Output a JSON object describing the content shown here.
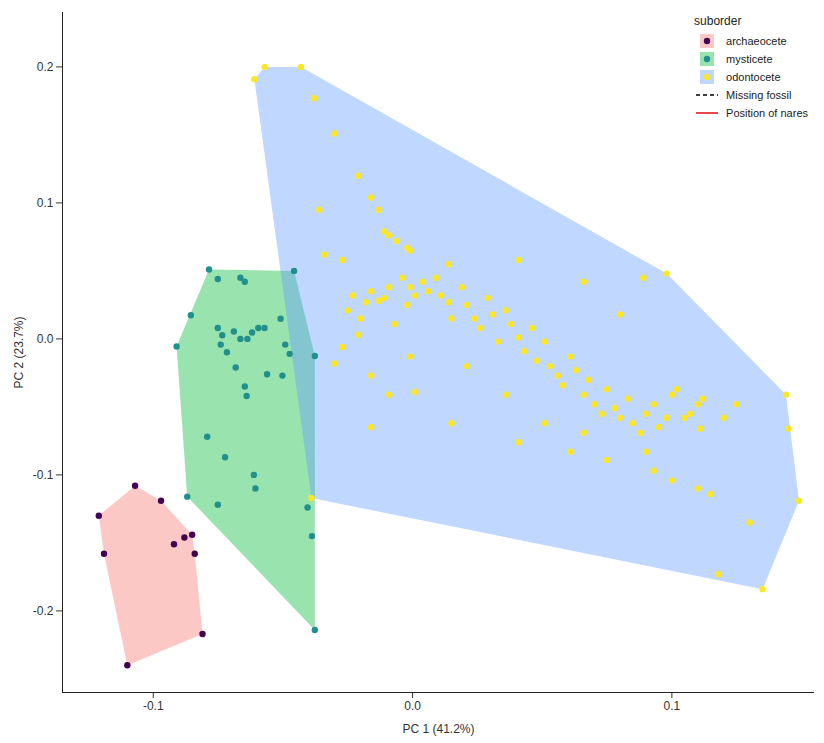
{
  "chart_data": {
    "type": "scatter",
    "x_label": "PC 1 (41.2%)",
    "y_label": "PC 2 (23.7%)",
    "legend_title": "suborder",
    "legend": "top-right",
    "grid": false,
    "xlim": [
      -0.135,
      0.155
    ],
    "ylim": [
      -0.26,
      0.24
    ],
    "xticks": [
      {
        "value": -0.1,
        "label": "-0.1"
      },
      {
        "value": 0,
        "label": "0.0"
      },
      {
        "value": 0.1,
        "label": "0.1"
      }
    ],
    "yticks": [
      {
        "value": -0.2,
        "label": "-0.2"
      },
      {
        "value": -0.1,
        "label": "-0.1"
      },
      {
        "value": 0,
        "label": "0.0"
      },
      {
        "value": 0.1,
        "label": "0.1"
      },
      {
        "value": 0.2,
        "label": "0.2"
      }
    ],
    "series": [
      {
        "name": "archaeocete",
        "marker": "circle",
        "colors": [
          "#F8766D",
          "#440154"
        ],
        "x": [
          -0.121,
          -0.119,
          -0.107,
          -0.097,
          -0.092,
          -0.088,
          -0.085,
          -0.084,
          -0.081,
          -0.11
        ],
        "y": [
          -0.13,
          -0.158,
          -0.108,
          -0.119,
          -0.151,
          -0.146,
          -0.144,
          -0.158,
          -0.217,
          -0.24
        ]
      },
      {
        "name": "mysticete",
        "marker": "circle",
        "colors": [
          "#00BA38",
          "#21908C"
        ],
        "x": [
          -0.0785,
          -0.0751,
          -0.091,
          -0.0664,
          -0.0647,
          -0.0855,
          -0.0751,
          -0.0734,
          -0.0689,
          -0.0664,
          -0.0619,
          -0.0595,
          -0.0571,
          -0.074,
          -0.0716,
          -0.0637,
          -0.0682,
          -0.0647,
          -0.064,
          -0.0561,
          -0.0491,
          -0.0474,
          -0.0502,
          -0.0457,
          -0.0377,
          -0.0509,
          -0.0792,
          -0.0723,
          -0.0612,
          -0.0751,
          -0.0869,
          -0.0405,
          -0.0388,
          -0.0377,
          -0.0606
        ],
        "y": [
          0.051,
          0.044,
          -0.0056,
          0.045,
          0.042,
          0.0174,
          0.008,
          0.0027,
          0.0054,
          0.0,
          0.0047,
          0.008,
          0.008,
          -0.0042,
          -0.0098,
          0.0,
          -0.021,
          -0.035,
          -0.042,
          -0.026,
          -0.0042,
          -0.011,
          -0.027,
          0.05,
          -0.0126,
          0.0148,
          -0.072,
          -0.087,
          -0.1,
          -0.122,
          -0.116,
          -0.124,
          -0.145,
          -0.214,
          -0.11
        ]
      },
      {
        "name": "odontocete",
        "marker": "circle",
        "colors": [
          "#619CFF",
          "#FDE725"
        ],
        "x": [
          -0.061,
          -0.057,
          -0.043,
          -0.038,
          -0.03,
          -0.021,
          -0.016,
          -0.013,
          -0.011,
          -0.009,
          -0.006,
          -0.002,
          -0.001,
          -0.027,
          -0.036,
          -0.034,
          0.014,
          0.041,
          0.066,
          0.089,
          0.098,
          0.08,
          -0.025,
          -0.023,
          -0.02,
          -0.018,
          -0.016,
          -0.013,
          -0.011,
          -0.009,
          -0.007,
          -0.004,
          -0.002,
          -0.001,
          0.001,
          0.004,
          0.006,
          0.009,
          0.011,
          0.014,
          0.015,
          0.019,
          0.021,
          0.024,
          0.026,
          0.029,
          0.031,
          0.033,
          0.036,
          0.038,
          0.041,
          0.043,
          0.046,
          0.048,
          0.051,
          0.053,
          0.056,
          0.058,
          0.061,
          0.063,
          0.066,
          0.068,
          0.07,
          0.073,
          0.075,
          0.078,
          0.08,
          0.083,
          0.085,
          0.088,
          0.09,
          0.093,
          0.095,
          0.098,
          0.1,
          0.102,
          0.105,
          0.107,
          0.11,
          0.112,
          -0.001,
          0.021,
          0.036,
          0.051,
          0.066,
          0.041,
          0.061,
          0.075,
          0.09,
          0.093,
          0.1,
          0.11,
          0.115,
          0.111,
          0.12,
          0.125,
          0.145,
          0.144,
          0.149,
          0.135,
          0.13,
          0.118,
          -0.016,
          -0.009,
          0.001,
          -0.027,
          -0.021,
          -0.03,
          -0.016,
          0.015,
          -0.039
        ],
        "y": [
          0.191,
          0.2,
          0.2,
          0.177,
          0.151,
          0.12,
          0.104,
          0.095,
          0.079,
          0.076,
          0.072,
          0.067,
          0.065,
          0.058,
          0.095,
          0.062,
          0.055,
          0.058,
          0.042,
          0.045,
          0.048,
          0.018,
          0.021,
          0.032,
          0.015,
          0.027,
          0.035,
          0.028,
          0.03,
          0.038,
          0.011,
          0.045,
          0.025,
          0.038,
          0.032,
          0.042,
          0.035,
          0.045,
          0.032,
          0.027,
          0.015,
          0.038,
          0.025,
          0.015,
          0.008,
          0.03,
          0.018,
          -0.002,
          0.021,
          0.011,
          0.001,
          -0.009,
          0.008,
          -0.016,
          -0.002,
          -0.02,
          -0.027,
          -0.034,
          -0.013,
          -0.023,
          -0.041,
          -0.03,
          -0.048,
          -0.055,
          -0.037,
          -0.051,
          -0.058,
          -0.044,
          -0.062,
          -0.069,
          -0.055,
          -0.048,
          -0.065,
          -0.058,
          -0.041,
          -0.037,
          -0.058,
          -0.055,
          -0.048,
          -0.044,
          -0.013,
          -0.02,
          -0.041,
          -0.062,
          -0.069,
          -0.076,
          -0.083,
          -0.089,
          -0.083,
          -0.097,
          -0.104,
          -0.11,
          -0.114,
          -0.066,
          -0.058,
          -0.048,
          -0.066,
          -0.041,
          -0.119,
          -0.184,
          -0.135,
          -0.173,
          -0.027,
          -0.041,
          -0.039,
          -0.006,
          0.003,
          -0.018,
          -0.065,
          -0.062,
          -0.117
        ]
      }
    ],
    "annotations": [
      {
        "text": "Missing fossil",
        "line_style": "dashed",
        "color": "#000000"
      },
      {
        "text": "Position of nares",
        "line_style": "solid",
        "color": "#E41A1C"
      }
    ]
  }
}
